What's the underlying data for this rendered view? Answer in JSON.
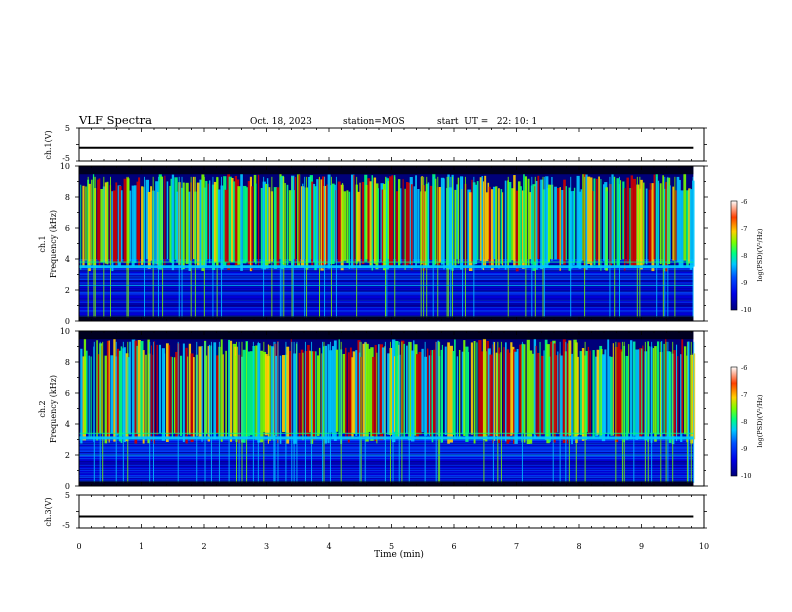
{
  "header": {
    "title": "VLF Spectra",
    "date": "Oct. 18, 2023",
    "station": "station=MOS",
    "start": "start  UT =   22: 10: 1"
  },
  "colors": {
    "spectrogram_palette": [
      "#00007a",
      "#0000e6",
      "#0050ff",
      "#00c8ff",
      "#00ff80",
      "#7aff00",
      "#ffd000",
      "#ff4000",
      "#cc0000"
    ],
    "background": "#ffffff",
    "axis": "#000000"
  },
  "chart_data": [
    {
      "type": "line",
      "panel": "ch1-waveform",
      "ylabel": "ch.1(V)",
      "ylim": [
        -5,
        5
      ],
      "yticks": [
        "5",
        "-5"
      ],
      "x": [
        0,
        9.83
      ],
      "series": [
        {
          "values": [
            -1.0,
            -1.0
          ]
        }
      ]
    },
    {
      "type": "heatmap",
      "panel": "ch1-spectrogram",
      "ylabel": "ch.1\nFrequency (kHz)",
      "ylim": [
        0,
        10
      ],
      "yticks": [
        "0",
        "2",
        "4",
        "6",
        "8",
        "10"
      ],
      "xlim": [
        0,
        9.83
      ],
      "colorbar": {
        "label": "log(PSD)(V²/Hz)",
        "range": [
          -10,
          -6
        ],
        "ticks": [
          "-6",
          "-7",
          "-8",
          "-9",
          "-10"
        ]
      },
      "bands_khz": {
        "strong_emission": [
          4.0,
          9.5
        ],
        "steady_line": 3.5,
        "lower_line": 2.3
      }
    },
    {
      "type": "heatmap",
      "panel": "ch2-spectrogram",
      "ylabel": "ch.2\nFrequency (kHz)",
      "ylim": [
        0,
        10
      ],
      "yticks": [
        "0",
        "2",
        "4",
        "6",
        "8",
        "10"
      ],
      "xlim": [
        0,
        9.83
      ],
      "colorbar": {
        "label": "log(PSD)(V²/Hz)",
        "range": [
          -10,
          -6
        ],
        "ticks": [
          "-6",
          "-7",
          "-8",
          "-9",
          "-10"
        ]
      },
      "bands_khz": {
        "strong_emission": [
          3.5,
          9.5
        ],
        "steady_line": 3.1,
        "lower_line": 2.0
      }
    },
    {
      "type": "line",
      "panel": "ch3-waveform",
      "ylabel": "ch.3(V)",
      "ylim": [
        -5,
        5
      ],
      "yticks": [
        "5",
        "-5"
      ],
      "x": [
        0,
        9.83
      ],
      "series": [
        {
          "values": [
            -1.5,
            -1.5
          ]
        }
      ]
    }
  ],
  "xaxis": {
    "label": "Time (min)",
    "xlim": [
      0,
      10
    ],
    "ticks": [
      "0",
      "1",
      "2",
      "3",
      "4",
      "5",
      "6",
      "7",
      "8",
      "9",
      "10"
    ]
  }
}
